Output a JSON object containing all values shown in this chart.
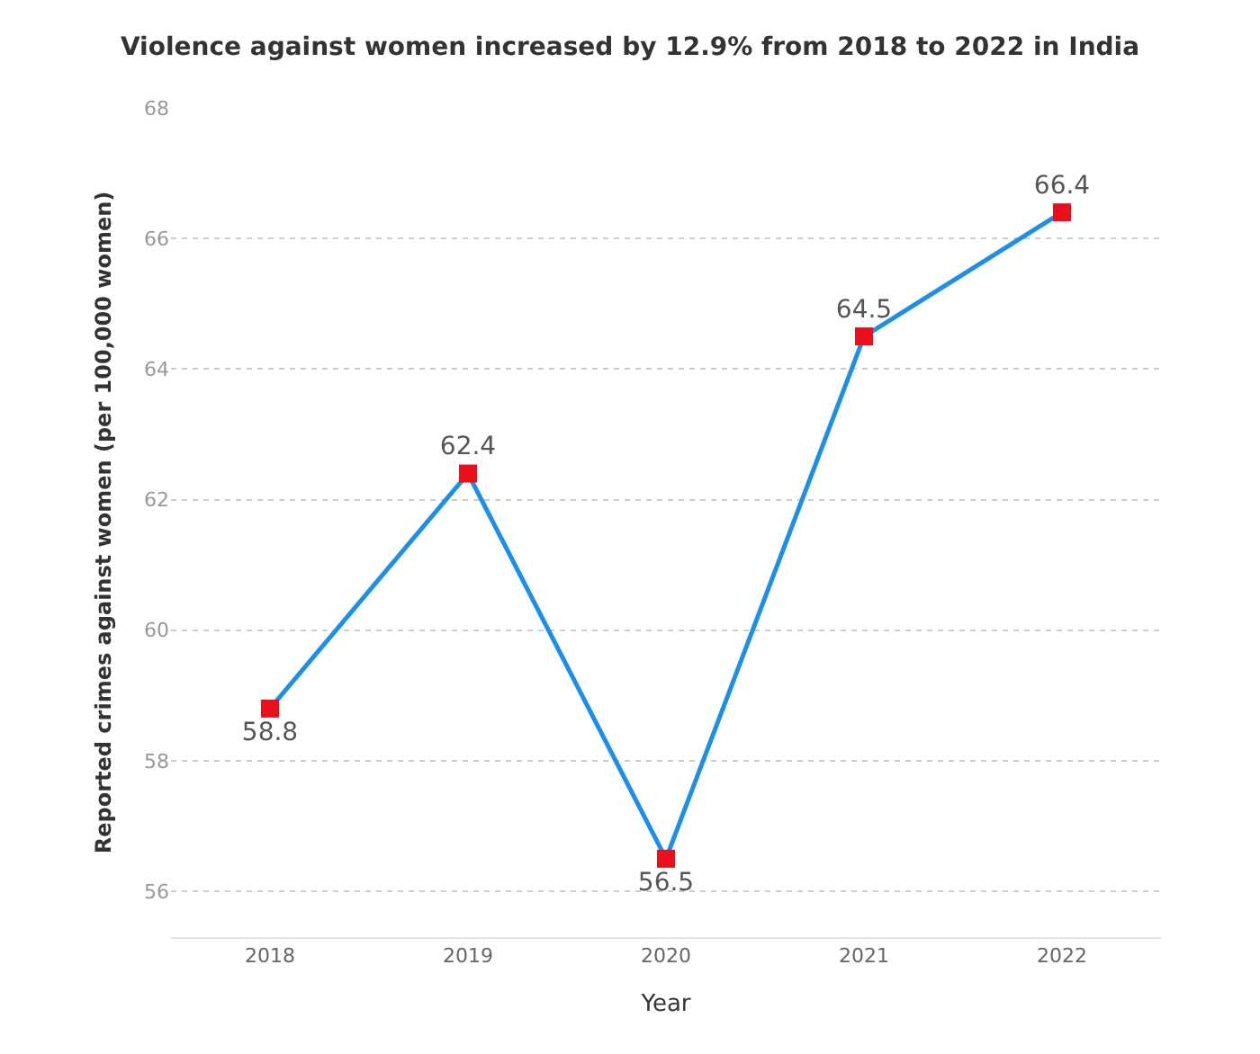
{
  "chart_data": {
    "type": "line",
    "title": "Violence against women increased by 12.9% from 2018 to 2022 in India",
    "xlabel": "Year",
    "ylabel": "Reported crimes against women (per 100,000 women)",
    "categories": [
      "2018",
      "2019",
      "2020",
      "2021",
      "2022"
    ],
    "series": [
      {
        "color": "#1e8fe8",
        "colors": [
          "#e8101c",
          "#e8101c",
          "#e8101c",
          "#e8101c",
          "#e8101c"
        ],
        "values": [
          58.8,
          62.4,
          56.5,
          64.5,
          66.4
        ]
      }
    ],
    "ylim": [
      55.3,
      68
    ],
    "yticks": [
      56,
      58,
      60,
      62,
      64,
      66,
      68
    ],
    "grid": "y",
    "marker": "square",
    "line_style": "solid",
    "data_labels": true,
    "legend": false
  }
}
